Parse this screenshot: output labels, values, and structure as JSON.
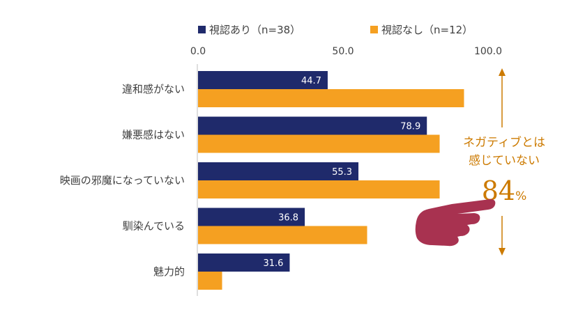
{
  "chart_data": {
    "type": "bar",
    "orientation": "horizontal",
    "categories": [
      "違和感がない",
      "嫌悪感はない",
      "映画の邪魔になっていない",
      "馴染んでいる",
      "魅力的"
    ],
    "series": [
      {
        "name": "視認あり（n=38）",
        "color": "#1f2a6b",
        "values": [
          44.7,
          78.9,
          55.3,
          36.8,
          31.6
        ],
        "data_labels": [
          "44.7",
          "78.9",
          "55.3",
          "36.8",
          "31.6"
        ]
      },
      {
        "name": "視認なし（n=12）",
        "color": "#f5a021",
        "values": [
          91.7,
          83.3,
          83.3,
          58.3,
          8.3
        ]
      }
    ],
    "xlim": [
      0,
      100
    ],
    "x_ticks": [
      "0.0",
      "50.0",
      "100.0"
    ],
    "legend_position": "top",
    "grid": false
  },
  "annotation": {
    "line1": "ネガティブとは",
    "line2": "感じていない",
    "value": "84",
    "unit": "%",
    "color": "#cc7a00",
    "arrow_color": "#cc7a00",
    "pointer_icon": "pointing-hand-icon",
    "pointer_color": "#a83250"
  }
}
